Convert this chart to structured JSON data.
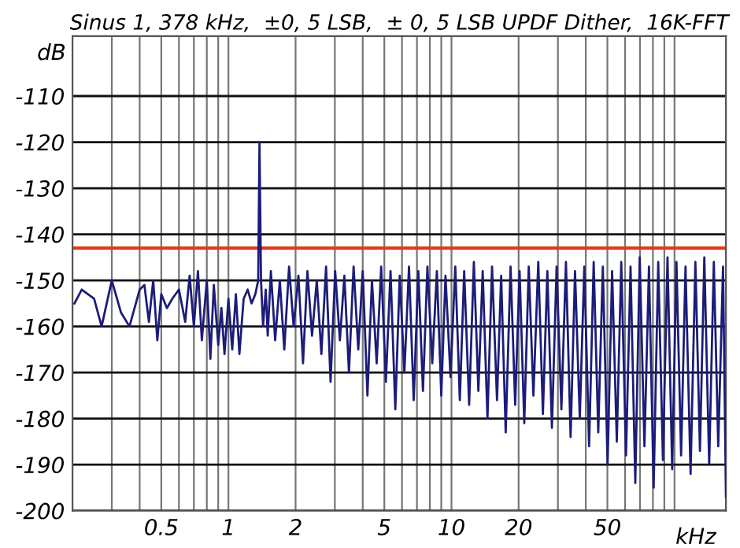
{
  "chart_data": {
    "type": "line",
    "title": "Sinus 1, 378 kHz,  ±0, 5 LSB,  ± 0, 5 LSB UPDF Dither,  16K-FFT",
    "xlabel": "kHz",
    "ylabel": "dB",
    "log": "x",
    "grid": true,
    "legend": false,
    "marker": "none",
    "line_style": "solid",
    "xlim": [
      0.2,
      170
    ],
    "ylim": [
      -200,
      -97
    ],
    "xticks": [
      {
        "value": 0.3,
        "label": null
      },
      {
        "value": 0.4,
        "label": null
      },
      {
        "value": 0.5,
        "label": "0.5"
      },
      {
        "value": 0.6,
        "label": null
      },
      {
        "value": 0.7,
        "label": null
      },
      {
        "value": 0.8,
        "label": null
      },
      {
        "value": 0.9,
        "label": null
      },
      1,
      2,
      {
        "value": 3,
        "label": null
      },
      {
        "value": 4,
        "label": null
      },
      5,
      {
        "value": 6,
        "label": null
      },
      {
        "value": 7,
        "label": null
      },
      {
        "value": 8,
        "label": null
      },
      {
        "value": 9,
        "label": null
      },
      10,
      20,
      {
        "value": 30,
        "label": null
      },
      {
        "value": 40,
        "label": null
      },
      50,
      {
        "value": 60,
        "label": null
      },
      {
        "value": 70,
        "label": null
      },
      {
        "value": 80,
        "label": null
      },
      {
        "value": 90,
        "label": null
      },
      {
        "value": 100,
        "label": null
      }
    ],
    "yticks": [
      -110,
      -120,
      -130,
      -140,
      -150,
      -160,
      -170,
      -180,
      -190,
      -200
    ],
    "ref_lines": [
      {
        "axis": "y",
        "value": -143,
        "label": null,
        "color": "#e03a1e",
        "line_style": "solid"
      }
    ],
    "series": [
      {
        "color": "#1c1c7a",
        "x": [
          0.204,
          0.22,
          0.25,
          0.27,
          0.3,
          0.33,
          0.36,
          0.4,
          0.42,
          0.44,
          0.46,
          0.48,
          0.5,
          0.53,
          0.56,
          0.6,
          0.64,
          0.67,
          0.7,
          0.73,
          0.76,
          0.8,
          0.83,
          0.86,
          0.9,
          0.93,
          0.96,
          1.0,
          1.04,
          1.08,
          1.12,
          1.17,
          1.22,
          1.27,
          1.32,
          1.36,
          1.378,
          1.4,
          1.43,
          1.47,
          1.5,
          1.55,
          1.62,
          1.7,
          1.78,
          1.87,
          1.96,
          2.06,
          2.16,
          2.26,
          2.37,
          2.49,
          2.61,
          2.74,
          2.87,
          3.01,
          3.16,
          3.31,
          3.47,
          3.64,
          3.82,
          4.0,
          4.2,
          4.4,
          4.62,
          4.84,
          5.08,
          5.33,
          5.6,
          5.86,
          6.15,
          6.45,
          6.77,
          7.1,
          7.45,
          7.8,
          8.2,
          8.6,
          9.0,
          9.4,
          9.9,
          10.4,
          10.9,
          11.4,
          12,
          12.6,
          13.2,
          13.8,
          14.5,
          15.2,
          16,
          16.7,
          17.5,
          18.4,
          19.3,
          20.2,
          21.2,
          22.2,
          23.3,
          24.5,
          25.7,
          26.9,
          28.2,
          29.6,
          31.1,
          32.6,
          34.2,
          35.8,
          37.6,
          39.4,
          41.4,
          43.4,
          45.5,
          47.7,
          50.1,
          52.5,
          55.1,
          57.7,
          60.6,
          63.5,
          66.7,
          69.8,
          73.3,
          76.8,
          80.6,
          84.5,
          88.7,
          93,
          97.6,
          102,
          107,
          112,
          118,
          124,
          130,
          136,
          143,
          150,
          157,
          165,
          170
        ],
        "values": [
          -155,
          -152,
          -154,
          -160,
          -150,
          -157,
          -160,
          -152,
          -151,
          -159,
          -150,
          -163,
          -153,
          -156,
          -154,
          -152,
          -159,
          -149,
          -160,
          -148,
          -163,
          -150,
          -167,
          -151,
          -164,
          -156,
          -166,
          -154,
          -165,
          -153,
          -166,
          -154,
          -152,
          -155,
          -153,
          -150,
          -120,
          -150,
          -160,
          -152,
          -162,
          -148,
          -163,
          -150,
          -165,
          -147,
          -160,
          -149,
          -168,
          -148,
          -162,
          -150,
          -166,
          -147,
          -172,
          -148,
          -163,
          -149,
          -170,
          -147,
          -165,
          -148,
          -175,
          -150,
          -168,
          -147,
          -172,
          -148,
          -178,
          -149,
          -170,
          -147,
          -176,
          -148,
          -174,
          -147,
          -168,
          -148,
          -175,
          -149,
          -171,
          -147,
          -176,
          -148,
          -177,
          -146,
          -174,
          -148,
          -180,
          -147,
          -176,
          -149,
          -183,
          -147,
          -177,
          -148,
          -181,
          -147,
          -175,
          -146,
          -179,
          -148,
          -182,
          -147,
          -178,
          -146,
          -184,
          -148,
          -180,
          -147,
          -186,
          -146,
          -183,
          -147,
          -190,
          -148,
          -185,
          -146,
          -188,
          -147,
          -194,
          -145,
          -186,
          -147,
          -195,
          -146,
          -189,
          -145,
          -191,
          -146,
          -188,
          -147,
          -192,
          -146,
          -187,
          -145,
          -190,
          -146,
          -186,
          -147,
          -197
        ]
      }
    ]
  }
}
